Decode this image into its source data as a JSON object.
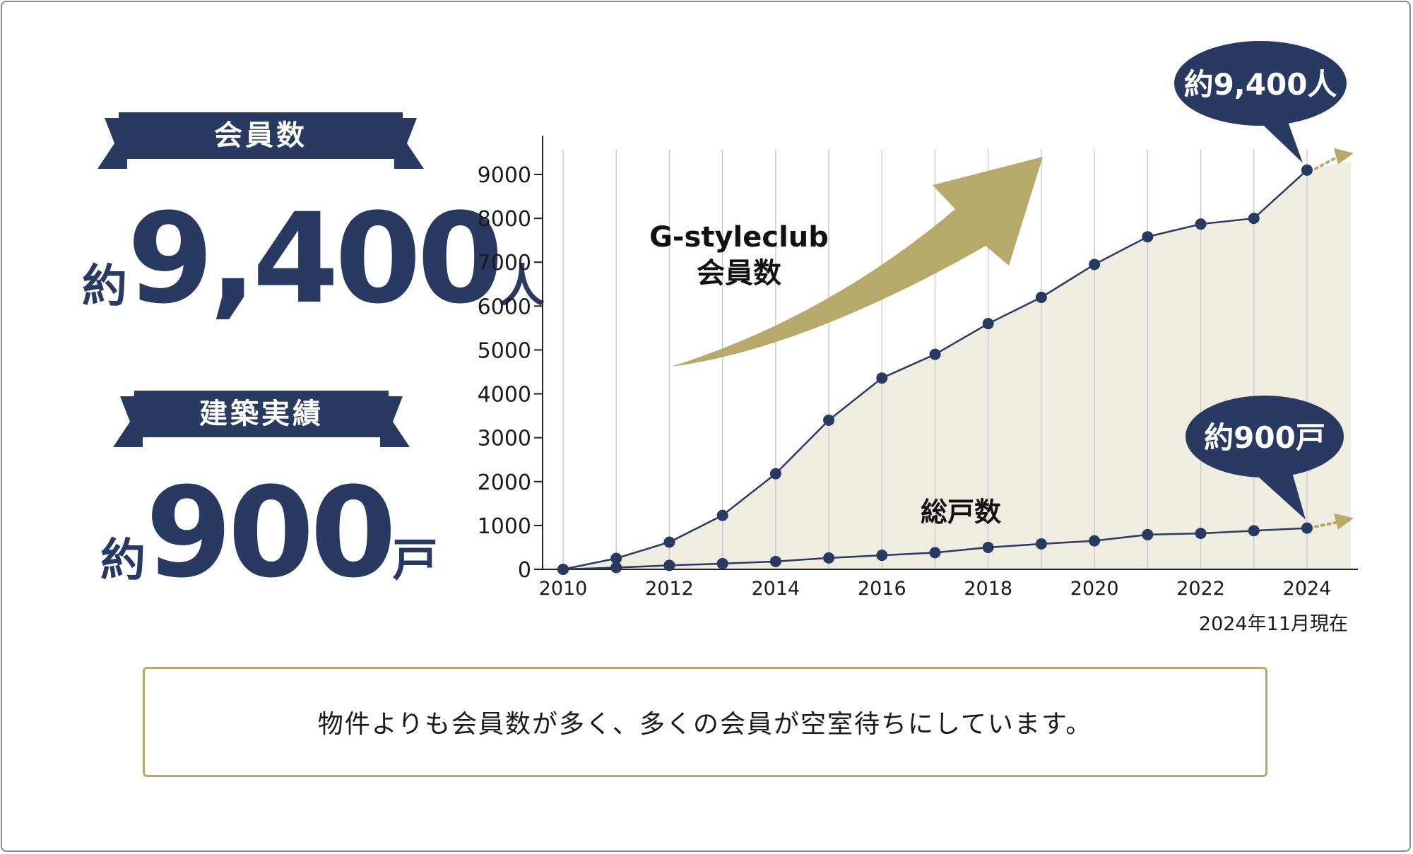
{
  "summary": {
    "members": {
      "label": "会員数",
      "prefix": "約",
      "value": "9,400",
      "suffix": "人"
    },
    "builds": {
      "label": "建築実績",
      "prefix": "約",
      "value": "900",
      "suffix": "戸"
    }
  },
  "note": "物件よりも会員数が多く、多くの会員が空室待ちにしています。",
  "colors": {
    "navy": "#283a62",
    "gold": "#b6a96a",
    "area": "#efece0",
    "grid": "#cccccc"
  },
  "chart_data": {
    "type": "line",
    "x": [
      2010,
      2011,
      2012,
      2013,
      2014,
      2015,
      2016,
      2017,
      2018,
      2019,
      2020,
      2021,
      2022,
      2023,
      2024
    ],
    "series": [
      {
        "name": "G-styleclub\n会員数",
        "values": [
          0,
          250,
          620,
          1230,
          2180,
          3400,
          4360,
          4900,
          5600,
          6200,
          6950,
          7580,
          7870,
          8000,
          9100
        ]
      },
      {
        "name": "総戸数",
        "values": [
          0,
          40,
          90,
          130,
          180,
          260,
          320,
          380,
          500,
          580,
          650,
          790,
          820,
          880,
          940
        ]
      }
    ],
    "x_ticks": [
      2010,
      2012,
      2014,
      2016,
      2018,
      2020,
      2022,
      2024
    ],
    "y_ticks": [
      0,
      1000,
      2000,
      3000,
      4000,
      5000,
      6000,
      7000,
      8000,
      9000
    ],
    "xlim": [
      2010,
      2024.9
    ],
    "ylim": [
      0,
      9900
    ],
    "grid": "vertical lines at each year",
    "annotations": [
      {
        "text": "約9,400人",
        "target_series": 0
      },
      {
        "text": "約900戸",
        "target_series": 1
      }
    ],
    "series_label_members_line1": "G-styleclub",
    "series_label_members_line2": "会員数",
    "series_label_units": "総戸数",
    "date_note": "2024年11月現在"
  }
}
